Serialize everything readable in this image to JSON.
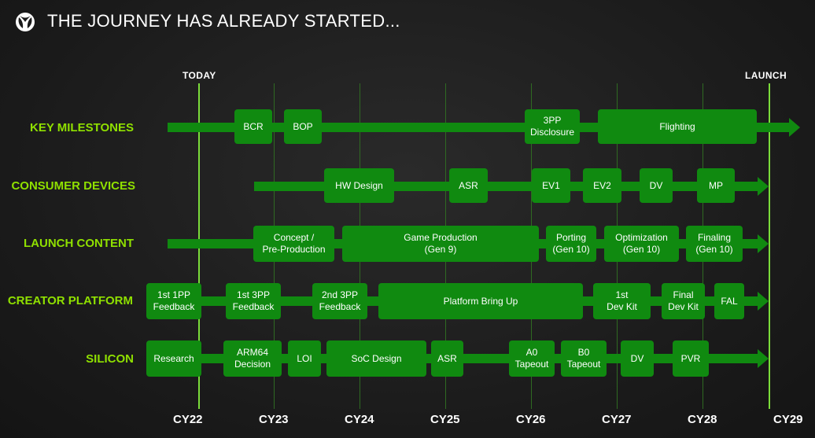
{
  "header": {
    "title": "THE JOURNEY HAS ALREADY STARTED...",
    "logo_icon": "xbox-logo-icon"
  },
  "markers": {
    "today": "TODAY",
    "launch": "LAUNCH"
  },
  "colors": {
    "accent_green": "#8fe000",
    "bar_green": "#108a10",
    "line_green": "#7bdc3a"
  },
  "years": [
    "CY22",
    "CY23",
    "CY24",
    "CY25",
    "CY26",
    "CY27",
    "CY28",
    "CY29"
  ],
  "rows": [
    {
      "label": "KEY MILESTONES",
      "items": [
        "BCR",
        "BOP",
        "3PP\nDisclosure",
        "Flighting"
      ]
    },
    {
      "label": "CONSUMER DEVICES",
      "items": [
        "HW Design",
        "ASR",
        "EV1",
        "EV2",
        "DV",
        "MP"
      ]
    },
    {
      "label": "LAUNCH CONTENT",
      "items": [
        "Concept /\nPre-Production",
        "Game Production\n(Gen 9)",
        "Porting\n(Gen 10)",
        "Optimization\n(Gen 10)",
        "Finaling\n(Gen 10)"
      ]
    },
    {
      "label": "CREATOR PLATFORM",
      "items": [
        "1st 1PP\nFeedback",
        "1st 3PP\nFeedback",
        "2nd 3PP\nFeedback",
        "Platform Bring Up",
        "1st\nDev Kit",
        "Final\nDev Kit",
        "FAL"
      ]
    },
    {
      "label": "SILICON",
      "items": [
        "Research",
        "ARM64\nDecision",
        "LOI",
        "SoC Design",
        "ASR",
        "A0\nTapeout",
        "B0\nTapeout",
        "DV",
        "PVR"
      ]
    }
  ]
}
